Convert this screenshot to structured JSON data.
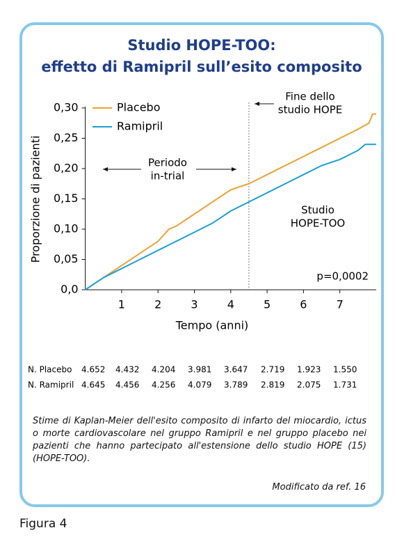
{
  "chart_data": {
    "type": "line",
    "title": [
      "Studio HOPE-TOO:",
      "effetto di Ramipril sull’esito composito"
    ],
    "y_label": "Proporzione di pazienti",
    "x_label": "Tempo (anni)",
    "xlim": [
      0,
      8
    ],
    "ylim": [
      0,
      0.3
    ],
    "xticks": [
      1,
      2,
      3,
      4,
      5,
      6,
      7
    ],
    "yticks": [
      {
        "value": 0,
        "label": "0,0"
      },
      {
        "value": 0.05,
        "label": "0,05"
      },
      {
        "value": 0.1,
        "label": "0,10"
      },
      {
        "value": 0.15,
        "label": "0,15"
      },
      {
        "value": 0.2,
        "label": "0,20"
      },
      {
        "value": 0.25,
        "label": "0,25"
      },
      {
        "value": 0.3,
        "label": "0,30"
      }
    ],
    "series": [
      {
        "name": "Placebo",
        "color": "#f0a030",
        "x": [
          0,
          0.5,
          1,
          1.5,
          2,
          2.3,
          2.5,
          3,
          3.5,
          4,
          4.5,
          5,
          5.5,
          6,
          6.5,
          7,
          7.5,
          7.8,
          7.9,
          8
        ],
        "values": [
          0,
          0.02,
          0.04,
          0.06,
          0.08,
          0.1,
          0.105,
          0.125,
          0.145,
          0.165,
          0.175,
          0.19,
          0.205,
          0.22,
          0.235,
          0.25,
          0.265,
          0.275,
          0.29,
          0.29
        ]
      },
      {
        "name": "Ramipril",
        "color": "#1aa0d8",
        "x": [
          0,
          0.5,
          1,
          1.5,
          2,
          2.5,
          3,
          3.5,
          4,
          4.5,
          5,
          5.5,
          6,
          6.5,
          7,
          7.5,
          7.7,
          8
        ],
        "values": [
          0,
          0.02,
          0.035,
          0.05,
          0.065,
          0.08,
          0.095,
          0.11,
          0.13,
          0.145,
          0.16,
          0.175,
          0.19,
          0.205,
          0.215,
          0.23,
          0.24,
          0.24
        ]
      }
    ],
    "vline": 4.5,
    "annotations": {
      "end_hope": [
        "Fine dello",
        "studio HOPE"
      ],
      "in_trial": [
        "Periodo",
        "in-trial"
      ],
      "hope_too": [
        "Studio",
        "HOPE-TOO"
      ],
      "p_value": "p=0,0002"
    }
  },
  "table": {
    "rows": [
      [
        "N. Placebo",
        "4.652",
        "4.432",
        "4.204",
        "3.981",
        "3.647",
        "2.719",
        "1.923",
        "1.550"
      ],
      [
        "N. Ramipril",
        "4.645",
        "4.456",
        "4.256",
        "4.079",
        "3.789",
        "2.819",
        "2.075",
        "1.731"
      ]
    ]
  },
  "caption": "Stime di Kaplan-Meier dell'esito composito di infarto del miocardio, ictus o morte cardiovascolare nel gruppo Ramipril e nel gruppo placebo nei pazienti che hanno partecipato all'estensione dello studio HOPE (15) (HOPE-TOO).",
  "source": "Modificato da ref. 16",
  "figure_label": "Figura 4"
}
